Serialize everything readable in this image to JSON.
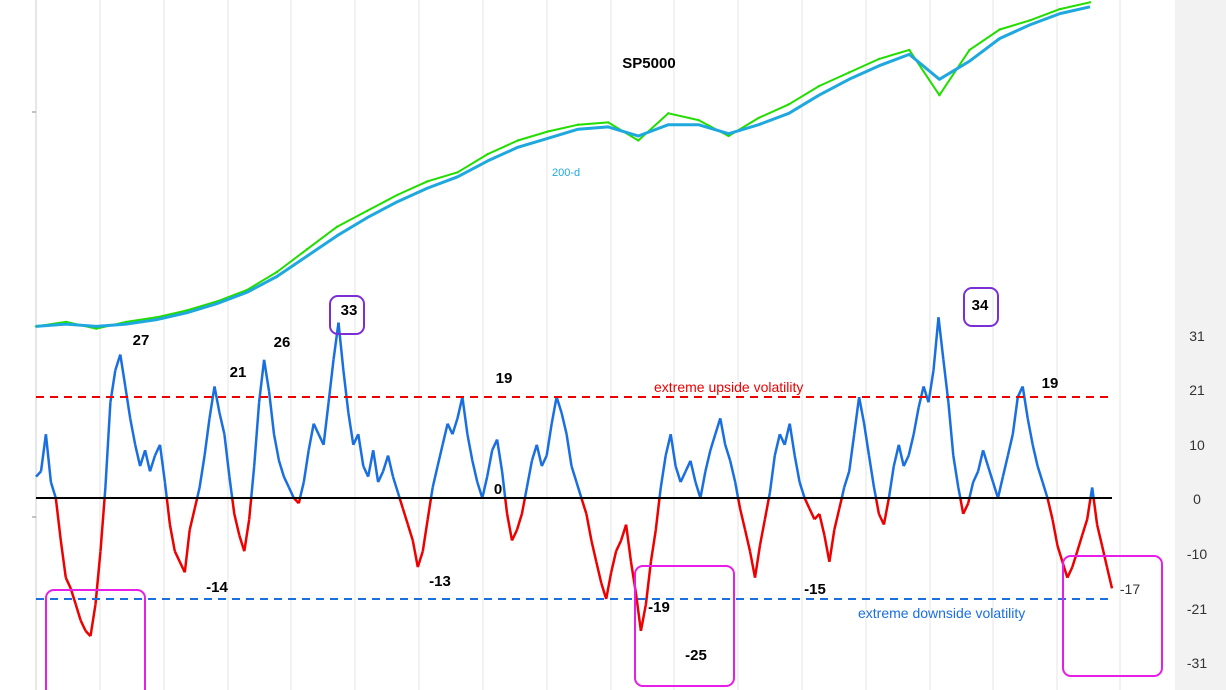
{
  "chart_data": [
    {
      "type": "line",
      "title": "SP5000",
      "series": [
        {
          "name": "",
          "color": "#22dd00",
          "values": [
            6,
            8,
            5,
            8,
            10,
            13,
            17,
            22,
            30,
            40,
            50,
            57,
            64,
            70,
            74,
            82,
            88,
            92,
            95,
            96,
            88,
            100,
            97,
            90,
            98,
            104,
            112,
            118,
            124,
            128,
            108,
            128,
            137,
            141,
            146,
            149
          ]
        },
        {
          "name": "200-d",
          "color": "#1ea8de",
          "values": [
            6,
            7,
            6,
            7,
            9,
            12,
            16,
            21,
            28,
            37,
            46,
            54,
            61,
            67,
            72,
            79,
            85,
            89,
            93,
            94,
            90,
            95,
            95,
            91,
            95,
            100,
            108,
            115,
            121,
            126,
            115,
            123,
            133,
            139,
            144,
            147
          ]
        }
      ],
      "annotations": {
        "ma_label": "200-d"
      }
    },
    {
      "type": "line",
      "series": [
        {
          "name": "",
          "color": "#1a6fe0",
          "negative_color": "#ee0000",
          "values": [
            4,
            5,
            12,
            3,
            0,
            -8,
            -15,
            -17,
            -20,
            -23,
            -25,
            -26,
            -20,
            -10,
            2,
            18,
            24,
            27,
            21,
            15,
            10,
            6,
            9,
            5,
            8,
            10,
            3,
            -5,
            -10,
            -12,
            -14,
            -6,
            -2,
            2,
            8,
            15,
            21,
            16,
            12,
            4,
            -3,
            -7,
            -10,
            -4,
            6,
            18,
            26,
            20,
            12,
            7,
            4,
            2,
            0,
            -1,
            3,
            9,
            14,
            12,
            10,
            18,
            26,
            33,
            24,
            16,
            10,
            12,
            6,
            4,
            9,
            3,
            5,
            8,
            4,
            1,
            -2,
            -5,
            -8,
            -13,
            -10,
            -4,
            2,
            6,
            10,
            14,
            12,
            15,
            19,
            12,
            7,
            3,
            0,
            4,
            9,
            11,
            5,
            -3,
            -8,
            -6,
            -3,
            2,
            7,
            10,
            6,
            8,
            14,
            19,
            16,
            12,
            6,
            3,
            0,
            -3,
            -8,
            -12,
            -16,
            -19,
            -14,
            -10,
            -8,
            -5,
            -12,
            -18,
            -25,
            -20,
            -12,
            -6,
            2,
            8,
            12,
            6,
            3,
            5,
            7,
            3,
            0,
            5,
            9,
            12,
            15,
            10,
            7,
            3,
            -2,
            -6,
            -10,
            -15,
            -9,
            -4,
            1,
            8,
            12,
            10,
            14,
            8,
            3,
            0,
            -2,
            -4,
            -3,
            -7,
            -12,
            -6,
            -2,
            2,
            5,
            12,
            19,
            14,
            8,
            2,
            -3,
            -5,
            0,
            6,
            10,
            6,
            8,
            12,
            17,
            21,
            18,
            24,
            34,
            26,
            18,
            8,
            2,
            -3,
            -1,
            3,
            5,
            9,
            6,
            3,
            0,
            4,
            8,
            12,
            19,
            21,
            15,
            10,
            6,
            3,
            0,
            -4,
            -9,
            -12,
            -15,
            -13,
            -10,
            -7,
            -4,
            2,
            -5,
            -9,
            -13,
            -17
          ]
        }
      ],
      "ylim": [
        -35,
        40
      ],
      "yticks": [
        31,
        21,
        10,
        0,
        -10,
        -21,
        -31
      ],
      "reference_lines": [
        {
          "y": 19,
          "label": "extreme upside volatility",
          "color": "#ee0000",
          "style": "dashed"
        },
        {
          "y": -19,
          "label": "extreme downside volatility",
          "color": "#1a6fe0",
          "style": "dashed"
        },
        {
          "y": 0,
          "label": "",
          "color": "#000000",
          "style": "solid"
        }
      ],
      "annotations": [
        "27",
        "21",
        "26",
        "33",
        "19",
        "0",
        "-14",
        "-13",
        "-19",
        "-25",
        "-15",
        "34",
        "19",
        "-17"
      ],
      "grid": true
    }
  ]
}
